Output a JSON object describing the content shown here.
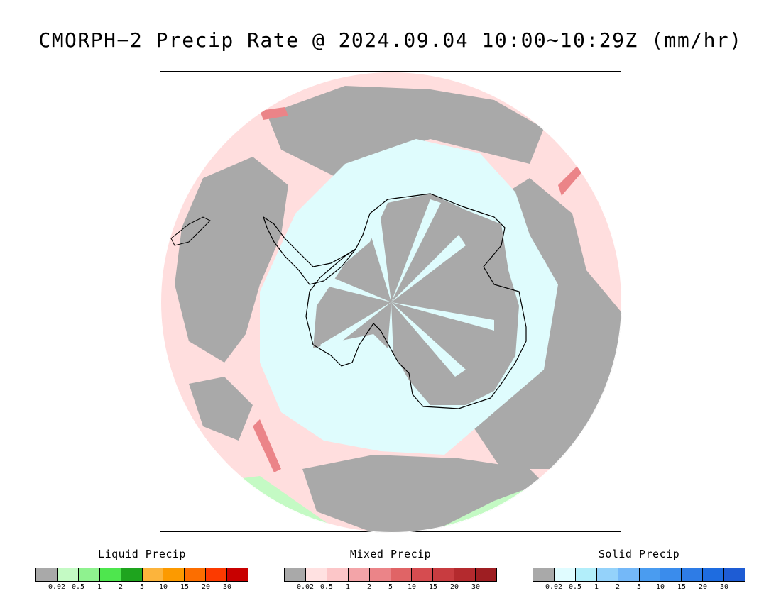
{
  "title": "CMORPH−2 Precip Rate @ 2024.09.04 10:00∼10:29Z (mm/hr)",
  "map": {
    "projection": "south-polar-stereographic",
    "colors": {
      "no_precip": "#a9a9a9",
      "light_mixed": "#ffdede",
      "light_solid": "#dffcfd",
      "coast": "#000000",
      "background": "#ffffff"
    }
  },
  "legends": [
    {
      "title": "Liquid Precip",
      "colors": [
        "#a9a9a9",
        "#c4fac4",
        "#8ff28f",
        "#4ee64e",
        "#1ea41e",
        "#fcb43c",
        "#fc9a00",
        "#fc6e00",
        "#fc3a00",
        "#c80000"
      ],
      "ticks": [
        "0.02",
        "0.5",
        "1",
        "2",
        "5",
        "10",
        "15",
        "20",
        "30"
      ]
    },
    {
      "title": "Mixed Precip",
      "colors": [
        "#a9a9a9",
        "#ffe1e1",
        "#fcc6c8",
        "#f3a4a8",
        "#eb8488",
        "#e06466",
        "#d64c50",
        "#c83c40",
        "#b42a2e",
        "#9e1e22"
      ],
      "ticks": [
        "0.02",
        "0.5",
        "1",
        "2",
        "5",
        "10",
        "15",
        "20",
        "30"
      ]
    },
    {
      "title": "Solid Precip",
      "colors": [
        "#a9a9a9",
        "#e0fcff",
        "#b2eefa",
        "#94d2fa",
        "#74b8f8",
        "#4a9cf0",
        "#3a8cec",
        "#2e7ce6",
        "#1e6ce0",
        "#1e5cd4"
      ],
      "ticks": [
        "0.02",
        "0.5",
        "1",
        "2",
        "5",
        "10",
        "15",
        "20",
        "30"
      ]
    }
  ]
}
